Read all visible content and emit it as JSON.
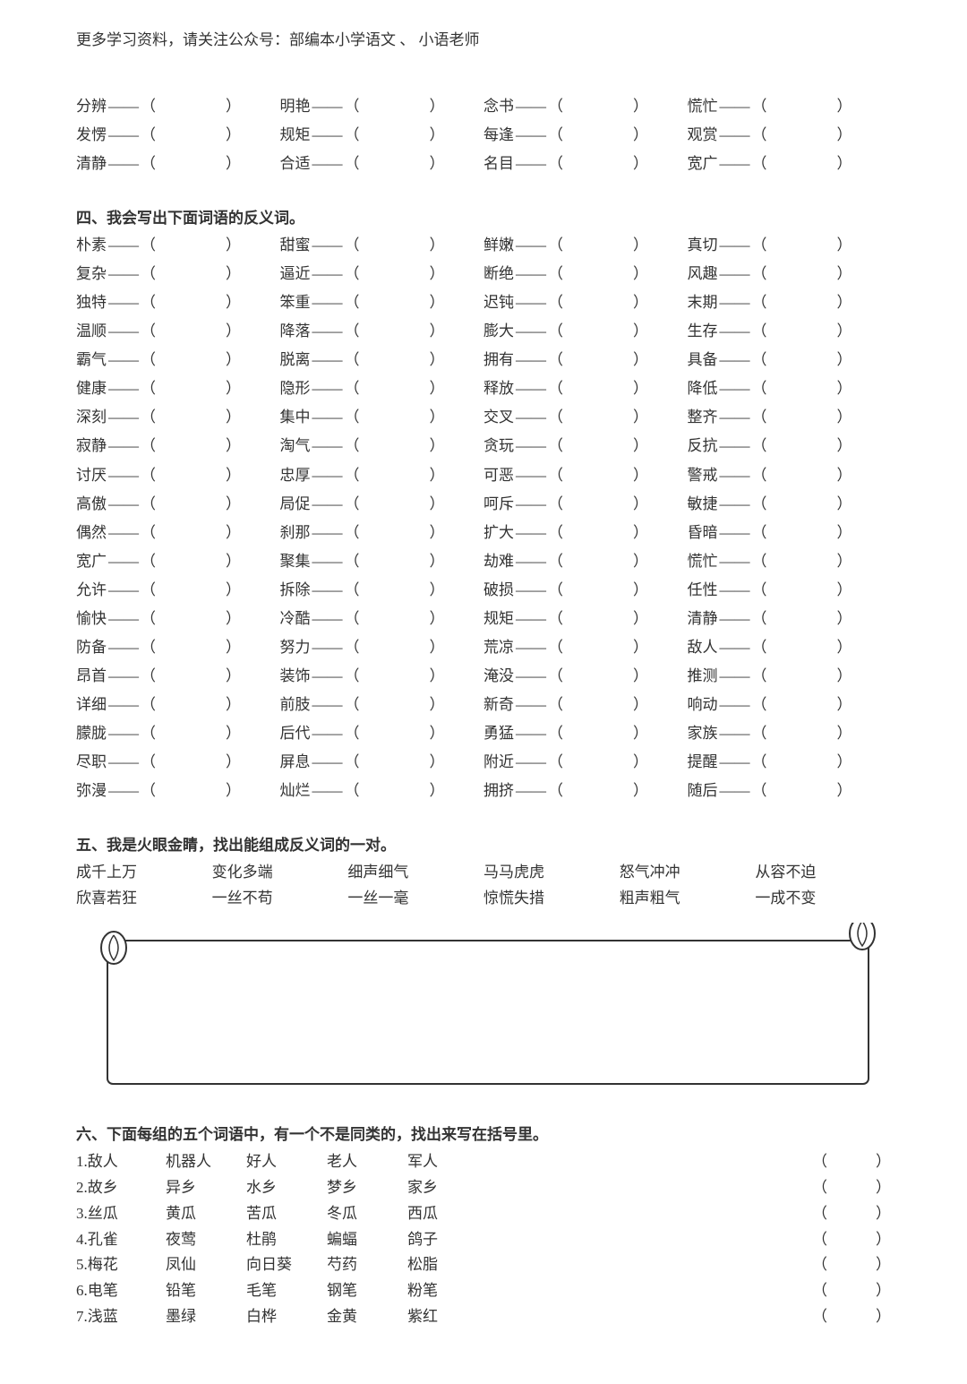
{
  "header_note": "更多学习资料，请关注公众号：部编本小学语文 、 小语老师",
  "dash": "——",
  "lp": "（",
  "rp": "）",
  "section3_extra_rows": [
    [
      "分辨",
      "明艳",
      "念书",
      "慌忙"
    ],
    [
      "发愣",
      "规矩",
      "每逢",
      "观赏"
    ],
    [
      "清静",
      "合适",
      "名目",
      "宽广"
    ]
  ],
  "section4": {
    "title": "四、我会写出下面词语的反义词。",
    "rows": [
      [
        "朴素",
        "甜蜜",
        "鲜嫩",
        "真切"
      ],
      [
        "复杂",
        "逼近",
        "断绝",
        "风趣"
      ],
      [
        "独特",
        "笨重",
        "迟钝",
        "末期"
      ],
      [
        "温顺",
        "降落",
        "膨大",
        "生存"
      ],
      [
        "霸气",
        "脱离",
        "拥有",
        "具备"
      ],
      [
        "健康",
        "隐形",
        "释放",
        "降低"
      ],
      [
        "深刻",
        "集中",
        "交叉",
        "整齐"
      ],
      [
        "寂静",
        "淘气",
        "贪玩",
        "反抗"
      ],
      [
        "讨厌",
        "忠厚",
        "可恶",
        "警戒"
      ],
      [
        "高傲",
        "局促",
        "呵斥",
        "敏捷"
      ],
      [
        "偶然",
        "刹那",
        "扩大",
        "昏暗"
      ],
      [
        "宽广",
        "聚集",
        "劫难",
        "慌忙"
      ],
      [
        "允许",
        "拆除",
        "破损",
        "任性"
      ],
      [
        "愉快",
        "冷酷",
        "规矩",
        "清静"
      ],
      [
        "防备",
        "努力",
        "荒凉",
        "敌人"
      ],
      [
        "昂首",
        "装饰",
        "淹没",
        "推测"
      ],
      [
        "详细",
        "前肢",
        "新奇",
        "响动"
      ],
      [
        "朦胧",
        "后代",
        "勇猛",
        "家族"
      ],
      [
        "尽职",
        "屏息",
        "附近",
        "提醒"
      ],
      [
        "弥漫",
        "灿烂",
        "拥挤",
        "随后"
      ]
    ]
  },
  "section5": {
    "title": "五、我是火眼金睛，找出能组成反义词的一对。",
    "row1": [
      "成千上万",
      "变化多端",
      "细声细气",
      "马马虎虎",
      "怒气冲冲",
      "从容不迫"
    ],
    "row2": [
      "欣喜若狂",
      "一丝不苟",
      "一丝一毫",
      "惊慌失措",
      "粗声粗气",
      "一成不变"
    ]
  },
  "section6": {
    "title": "六、下面每组的五个词语中，有一个不是同类的，找出来写在括号里。",
    "rows": [
      {
        "n": "1.",
        "words": [
          "敌人",
          "机器人",
          "好人",
          "老人",
          "军人"
        ]
      },
      {
        "n": "2.",
        "words": [
          "故乡",
          "异乡",
          "水乡",
          "梦乡",
          "家乡"
        ]
      },
      {
        "n": "3.",
        "words": [
          "丝瓜",
          "黄瓜",
          "苦瓜",
          "冬瓜",
          "西瓜"
        ]
      },
      {
        "n": "4.",
        "words": [
          "孔雀",
          "夜莺",
          "杜鹃",
          "蝙蝠",
          "鸽子"
        ]
      },
      {
        "n": "5.",
        "words": [
          "梅花",
          "凤仙",
          "向日葵",
          "芍药",
          "松脂"
        ]
      },
      {
        "n": "6.",
        "words": [
          "电笔",
          "铅笔",
          "毛笔",
          "钢笔",
          "粉笔"
        ]
      },
      {
        "n": "7.",
        "words": [
          "浅蓝",
          "墨绿",
          "白桦",
          "金黄",
          "紫红"
        ]
      }
    ]
  }
}
